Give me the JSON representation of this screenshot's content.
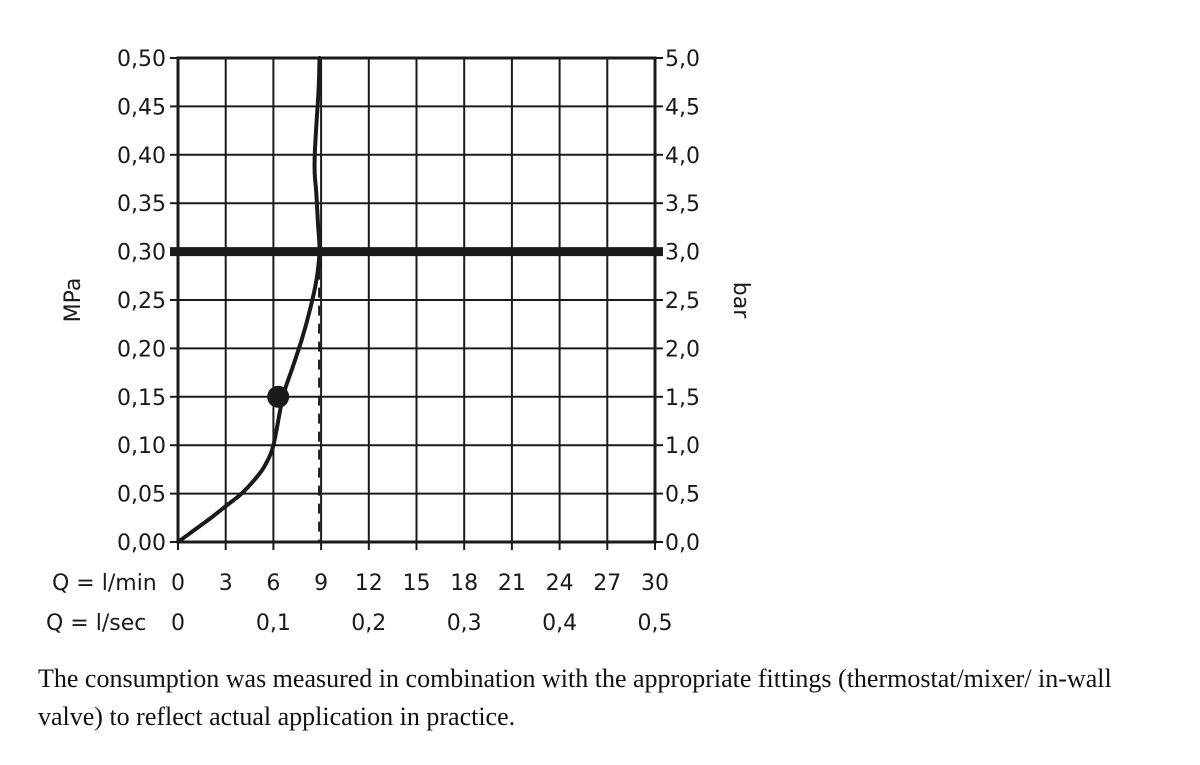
{
  "chart_data": {
    "type": "line",
    "left_axis": {
      "title": "MPa",
      "ylim": [
        0,
        0.5
      ],
      "ticks": [
        "0,00",
        "0,05",
        "0,10",
        "0,15",
        "0,20",
        "0,25",
        "0,30",
        "0,35",
        "0,40",
        "0,45",
        "0,50"
      ]
    },
    "right_axis": {
      "title": "bar",
      "ylim": [
        0,
        5
      ],
      "ticks": [
        "0,0",
        "0,5",
        "1,0",
        "1,5",
        "2,0",
        "2,5",
        "3,0",
        "3,5",
        "4,0",
        "4,5",
        "5,0"
      ]
    },
    "x_axis_lmin": {
      "label": "Q = l/min",
      "xlim": [
        0,
        30
      ],
      "ticks": [
        "0",
        "3",
        "6",
        "9",
        "12",
        "15",
        "18",
        "21",
        "24",
        "27",
        "30"
      ]
    },
    "x_axis_lsec": {
      "label": "Q = l/sec",
      "ticks": [
        {
          "value": 0,
          "label": "0"
        },
        {
          "value": 6,
          "label": "0,1"
        },
        {
          "value": 12,
          "label": "0,2"
        },
        {
          "value": 18,
          "label": "0,3"
        },
        {
          "value": 24,
          "label": "0,4"
        },
        {
          "value": 30,
          "label": "0,5"
        }
      ]
    },
    "grid": true,
    "series": [
      {
        "x": [
          0,
          1,
          2,
          3,
          4,
          5,
          5.5,
          6,
          6.6,
          7.2,
          7.8,
          8.3,
          8.7,
          8.9,
          8.8,
          8.7,
          8.6,
          8.6,
          8.7,
          8.85,
          8.9
        ],
        "y": [
          0,
          0.012,
          0.024,
          0.037,
          0.05,
          0.068,
          0.08,
          0.1,
          0.15,
          0.18,
          0.21,
          0.24,
          0.27,
          0.3,
          0.33,
          0.36,
          0.38,
          0.4,
          0.43,
          0.47,
          0.5
        ]
      }
    ],
    "reference_line": {
      "y": 0.3
    },
    "vertical_dashed_line": {
      "x": 9,
      "y_from": 0,
      "y_to": 0.3
    },
    "marker": {
      "x": 6.3,
      "y": 0.15
    }
  },
  "caption": "The consumption was measured in combination with the appropriate fittings (thermostat/mixer/ in-wall valve) to reflect actual application in practice."
}
